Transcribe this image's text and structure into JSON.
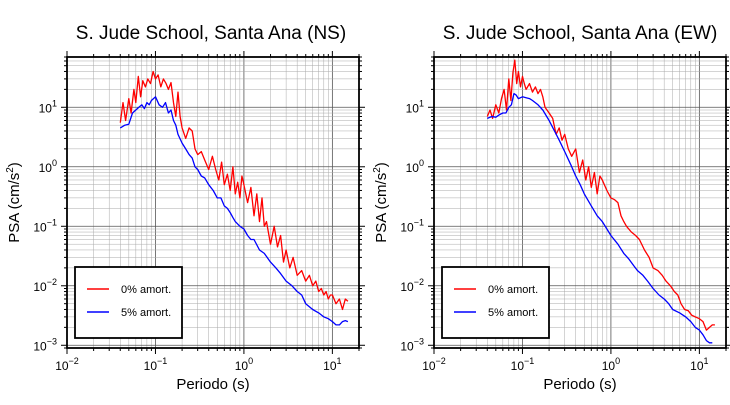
{
  "chart_data": [
    {
      "type": "line",
      "title": "S. Jude School, Santa Ana (NS)",
      "xlabel": "Periodo (s)",
      "ylabel_base": "PSA (cm/s",
      "ylabel_exp": "2",
      "ylabel_close": ")",
      "x_scale": "log",
      "y_scale": "log",
      "xlim": [
        0.01,
        20
      ],
      "ylim": [
        0.0009,
        70
      ],
      "grid": true,
      "legend_position": "bottom-left",
      "x_ticks": [
        {
          "base": "10",
          "exp": "−2",
          "value": 0.01
        },
        {
          "base": "10",
          "exp": "−1",
          "value": 0.1
        },
        {
          "base": "10",
          "exp": "0",
          "value": 1
        },
        {
          "base": "10",
          "exp": "1",
          "value": 10
        }
      ],
      "y_ticks": [
        {
          "base": "10",
          "exp": "−3",
          "value": 0.001
        },
        {
          "base": "10",
          "exp": "−2",
          "value": 0.01
        },
        {
          "base": "10",
          "exp": "−1",
          "value": 0.1
        },
        {
          "base": "10",
          "exp": "0",
          "value": 1
        },
        {
          "base": "10",
          "exp": "1",
          "value": 10
        }
      ],
      "series": [
        {
          "name": "0% amort.",
          "color": "#ff0000",
          "x": [
            0.04,
            0.043,
            0.046,
            0.05,
            0.053,
            0.057,
            0.06,
            0.064,
            0.068,
            0.072,
            0.077,
            0.082,
            0.088,
            0.094,
            0.1,
            0.107,
            0.115,
            0.123,
            0.132,
            0.14,
            0.15,
            0.16,
            0.17,
            0.18,
            0.19,
            0.2,
            0.22,
            0.24,
            0.26,
            0.28,
            0.3,
            0.33,
            0.36,
            0.4,
            0.44,
            0.48,
            0.52,
            0.56,
            0.6,
            0.65,
            0.7,
            0.75,
            0.8,
            0.85,
            0.9,
            0.95,
            1.0,
            1.1,
            1.2,
            1.3,
            1.4,
            1.5,
            1.6,
            1.7,
            1.8,
            2.0,
            2.2,
            2.4,
            2.6,
            2.8,
            3.0,
            3.3,
            3.6,
            4.0,
            4.5,
            5.0,
            5.5,
            6.0,
            6.5,
            7.0,
            7.5,
            8.0,
            8.5,
            9.0,
            9.5,
            10.0,
            11.0,
            12.0,
            13.0,
            14.0,
            15.0
          ],
          "y": [
            5.5,
            12.0,
            6.0,
            14.0,
            8.0,
            20.0,
            12.0,
            33.0,
            15.0,
            28.0,
            22.0,
            30.0,
            25.0,
            40.0,
            30.0,
            35.0,
            22.0,
            30.0,
            25.0,
            20.0,
            26.0,
            12.0,
            7.0,
            18.0,
            7.0,
            4.5,
            3.0,
            4.5,
            4.0,
            2.0,
            1.6,
            1.8,
            1.3,
            0.9,
            1.5,
            0.9,
            0.6,
            1.2,
            0.5,
            0.75,
            0.4,
            1.0,
            0.35,
            0.55,
            0.3,
            0.7,
            0.5,
            0.25,
            0.45,
            0.15,
            0.35,
            0.12,
            0.3,
            0.1,
            0.12,
            0.05,
            0.1,
            0.045,
            0.07,
            0.025,
            0.04,
            0.02,
            0.03,
            0.015,
            0.018,
            0.012,
            0.015,
            0.01,
            0.012,
            0.008,
            0.009,
            0.007,
            0.008,
            0.006,
            0.007,
            0.007,
            0.005,
            0.006,
            0.004,
            0.006,
            0.0055
          ]
        },
        {
          "name": "5% amort.",
          "color": "#0000ff",
          "x": [
            0.04,
            0.045,
            0.05,
            0.055,
            0.06,
            0.065,
            0.07,
            0.075,
            0.08,
            0.085,
            0.09,
            0.095,
            0.1,
            0.11,
            0.12,
            0.13,
            0.14,
            0.15,
            0.16,
            0.17,
            0.18,
            0.2,
            0.22,
            0.24,
            0.26,
            0.28,
            0.3,
            0.33,
            0.36,
            0.4,
            0.45,
            0.5,
            0.55,
            0.6,
            0.65,
            0.7,
            0.75,
            0.8,
            0.9,
            1.0,
            1.1,
            1.2,
            1.3,
            1.5,
            1.7,
            2.0,
            2.3,
            2.6,
            3.0,
            3.5,
            4.0,
            4.5,
            5.0,
            6.0,
            7.0,
            8.0,
            9.0,
            10.0,
            11.0,
            12.0,
            13.0,
            14.0,
            15.0
          ],
          "y": [
            4.5,
            5.0,
            5.2,
            8.0,
            9.0,
            10.0,
            11.0,
            9.5,
            12.0,
            11.0,
            13.0,
            14.0,
            15.0,
            11.0,
            10.0,
            12.0,
            8.0,
            9.0,
            6.0,
            5.0,
            3.5,
            2.5,
            2.0,
            1.6,
            1.4,
            1.0,
            0.9,
            0.7,
            0.65,
            0.5,
            0.4,
            0.3,
            0.3,
            0.22,
            0.2,
            0.17,
            0.14,
            0.12,
            0.1,
            0.09,
            0.07,
            0.06,
            0.06,
            0.04,
            0.035,
            0.025,
            0.02,
            0.016,
            0.012,
            0.01,
            0.008,
            0.007,
            0.005,
            0.004,
            0.0035,
            0.003,
            0.0028,
            0.0025,
            0.0022,
            0.0022,
            0.0025,
            0.0026,
            0.0025
          ]
        }
      ]
    },
    {
      "type": "line",
      "title": "S. Jude School, Santa Ana (EW)",
      "xlabel": "Periodo (s)",
      "ylabel_base": "PSA (cm/s",
      "ylabel_exp": "2",
      "ylabel_close": ")",
      "x_scale": "log",
      "y_scale": "log",
      "xlim": [
        0.01,
        20
      ],
      "ylim": [
        0.0009,
        70
      ],
      "grid": true,
      "legend_position": "bottom-left",
      "x_ticks": [
        {
          "base": "10",
          "exp": "−2",
          "value": 0.01
        },
        {
          "base": "10",
          "exp": "−1",
          "value": 0.1
        },
        {
          "base": "10",
          "exp": "0",
          "value": 1
        },
        {
          "base": "10",
          "exp": "1",
          "value": 10
        }
      ],
      "y_ticks": [
        {
          "base": "10",
          "exp": "−3",
          "value": 0.001
        },
        {
          "base": "10",
          "exp": "−2",
          "value": 0.01
        },
        {
          "base": "10",
          "exp": "−1",
          "value": 0.1
        },
        {
          "base": "10",
          "exp": "0",
          "value": 1
        },
        {
          "base": "10",
          "exp": "1",
          "value": 10
        }
      ],
      "series": [
        {
          "name": "0% amort.",
          "color": "#ff0000",
          "x": [
            0.04,
            0.043,
            0.046,
            0.05,
            0.054,
            0.058,
            0.062,
            0.066,
            0.07,
            0.074,
            0.078,
            0.082,
            0.086,
            0.09,
            0.095,
            0.1,
            0.105,
            0.11,
            0.12,
            0.13,
            0.14,
            0.15,
            0.16,
            0.17,
            0.18,
            0.2,
            0.22,
            0.24,
            0.26,
            0.28,
            0.3,
            0.33,
            0.36,
            0.4,
            0.44,
            0.48,
            0.52,
            0.56,
            0.6,
            0.65,
            0.7,
            0.75,
            0.8,
            0.9,
            1.0,
            1.1,
            1.2,
            1.3,
            1.4,
            1.5,
            1.7,
            1.9,
            2.1,
            2.4,
            2.7,
            3.0,
            3.4,
            3.8,
            4.2,
            4.7,
            5.2,
            5.7,
            6.2,
            6.8,
            7.5,
            8.2,
            9.0,
            10.0,
            11.0,
            12.0,
            13.0,
            14.0,
            15.0
          ],
          "y": [
            7.0,
            9.0,
            6.5,
            11.0,
            8.0,
            14.0,
            20.0,
            9.0,
            30.0,
            13.0,
            38.0,
            62.0,
            25.0,
            40.0,
            22.0,
            33.0,
            25.0,
            20.0,
            25.0,
            18.0,
            22.0,
            17.0,
            20.0,
            15.0,
            10.0,
            8.0,
            6.5,
            3.5,
            4.5,
            2.8,
            3.5,
            2.0,
            1.5,
            2.0,
            0.8,
            1.3,
            0.6,
            1.0,
            0.45,
            0.8,
            0.35,
            0.7,
            0.6,
            0.4,
            0.3,
            0.28,
            0.25,
            0.15,
            0.12,
            0.1,
            0.08,
            0.07,
            0.06,
            0.04,
            0.03,
            0.02,
            0.018,
            0.015,
            0.012,
            0.01,
            0.008,
            0.007,
            0.005,
            0.004,
            0.0038,
            0.0032,
            0.003,
            0.0028,
            0.0025,
            0.0018,
            0.002,
            0.0022,
            0.0022
          ]
        },
        {
          "name": "5% amort.",
          "color": "#0000ff",
          "x": [
            0.04,
            0.045,
            0.05,
            0.055,
            0.06,
            0.065,
            0.07,
            0.075,
            0.08,
            0.085,
            0.09,
            0.1,
            0.11,
            0.12,
            0.13,
            0.15,
            0.17,
            0.2,
            0.23,
            0.26,
            0.3,
            0.35,
            0.4,
            0.45,
            0.5,
            0.6,
            0.7,
            0.8,
            0.9,
            1.0,
            1.2,
            1.4,
            1.6,
            1.8,
            2.0,
            2.3,
            2.6,
            3.0,
            3.5,
            4.0,
            4.5,
            5.0,
            6.0,
            7.0,
            8.0,
            9.0,
            10.0,
            11.0,
            12.0,
            13.0,
            14.0
          ],
          "y": [
            6.5,
            7.0,
            6.8,
            7.5,
            8.0,
            8.0,
            10.0,
            11.0,
            17.0,
            16.0,
            14.0,
            15.0,
            14.5,
            14.0,
            13.0,
            11.0,
            9.0,
            6.0,
            4.0,
            2.8,
            1.8,
            1.1,
            0.7,
            0.5,
            0.35,
            0.22,
            0.15,
            0.12,
            0.09,
            0.07,
            0.05,
            0.035,
            0.028,
            0.022,
            0.018,
            0.015,
            0.012,
            0.009,
            0.007,
            0.006,
            0.005,
            0.004,
            0.0035,
            0.003,
            0.0025,
            0.002,
            0.0018,
            0.0015,
            0.0012,
            0.0011,
            0.0011
          ]
        }
      ]
    }
  ]
}
